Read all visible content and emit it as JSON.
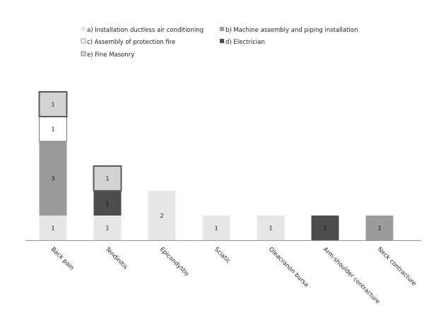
{
  "chart_data": {
    "type": "bar",
    "stacked": true,
    "title": "",
    "xlabel": "",
    "ylabel": "",
    "grid": false,
    "legend_position": "top",
    "ylim": [
      0,
      6
    ],
    "categories": [
      "Back pain",
      "Tendinitis",
      "Epicondylitis",
      "Sciatic",
      "Oleacranon bursa",
      "Arm-shoulder contracture",
      "Neck contracture"
    ],
    "series": [
      {
        "name": "a) Installation ductless air conditioning",
        "color": "#e6e6e6",
        "values": [
          1,
          1,
          2,
          1,
          1,
          0,
          0
        ]
      },
      {
        "name": "b) Machine assembly and piping installation",
        "color": "#9b9b9b",
        "values": [
          3,
          0,
          0,
          0,
          0,
          0,
          1
        ]
      },
      {
        "name": "c) Assembly of protection fire",
        "color": "#ffffff",
        "values": [
          1,
          0,
          0,
          0,
          0,
          0,
          0
        ]
      },
      {
        "name": "d) Electrician",
        "color": "#4d4d4d",
        "values": [
          0,
          1,
          0,
          0,
          0,
          1,
          0
        ]
      },
      {
        "name": "e) Fine Masonry",
        "color": "#d3d3d3",
        "values": [
          1,
          1,
          0,
          0,
          0,
          0,
          0
        ]
      }
    ]
  }
}
